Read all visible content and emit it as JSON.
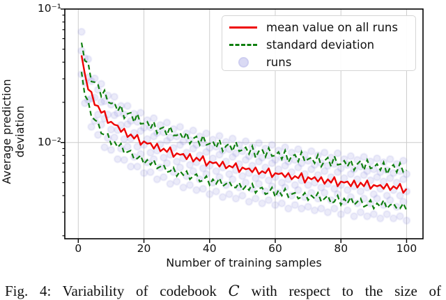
{
  "figure": {
    "caption": {
      "before": "Fig. 4: Variability of codebook ",
      "symbol": "C",
      "after": " with respect to the size of"
    }
  },
  "chart_data": {
    "type": "line+scatter",
    "title": "",
    "xlabel": "Number of training samples",
    "ylabel": "Average prediction deviation",
    "yscale": "log",
    "grid": true,
    "xlim": [
      -4.1,
      105
    ],
    "ylim": [
      0.0019,
      0.1
    ],
    "xticks": [
      0,
      20,
      40,
      60,
      80,
      100
    ],
    "yticks": [
      {
        "value": 0.1,
        "label": "10⁻¹"
      },
      {
        "value": 0.01,
        "label": "10⁻²"
      }
    ],
    "yticks_minor": [
      0.09,
      0.08,
      0.07,
      0.06,
      0.05,
      0.04,
      0.03,
      0.02,
      0.009,
      0.008,
      0.007,
      0.006,
      0.005,
      0.004,
      0.003,
      0.002
    ],
    "colors": {
      "mean": "#ee0000",
      "std": "#0f7f0f",
      "runs": "#7b7bd7",
      "grid": "#cccccc",
      "axes": "#000000"
    },
    "legend": {
      "position": "upper right",
      "items": [
        {
          "label": "mean value on all runs",
          "color": "#ee0000",
          "style": "solid"
        },
        {
          "label": "standard deviation",
          "color": "#0f7f0f",
          "style": "dashed"
        },
        {
          "label": "runs",
          "color": "#7b7bd7",
          "style": "scatter"
        }
      ]
    },
    "x": [
      1,
      2,
      3,
      4,
      5,
      6,
      7,
      8,
      9,
      10,
      11,
      12,
      13,
      14,
      15,
      16,
      17,
      18,
      19,
      20,
      21,
      22,
      23,
      24,
      25,
      26,
      27,
      28,
      29,
      30,
      31,
      32,
      33,
      34,
      35,
      36,
      37,
      38,
      39,
      40,
      41,
      42,
      43,
      44,
      45,
      46,
      47,
      48,
      49,
      50,
      51,
      52,
      53,
      54,
      55,
      56,
      57,
      58,
      59,
      60,
      61,
      62,
      63,
      64,
      65,
      66,
      67,
      68,
      69,
      70,
      71,
      72,
      73,
      74,
      75,
      76,
      77,
      78,
      79,
      80,
      81,
      82,
      83,
      84,
      85,
      86,
      87,
      88,
      89,
      90,
      91,
      92,
      93,
      94,
      95,
      96,
      97,
      98,
      99,
      100
    ],
    "series": [
      {
        "name": "mean value on all runs",
        "color": "#ee0000",
        "style": "solid",
        "values": [
          0.045,
          0.0328,
          0.025,
          0.0239,
          0.0191,
          0.0188,
          0.0167,
          0.0172,
          0.014,
          0.0143,
          0.0136,
          0.0134,
          0.012,
          0.0127,
          0.011,
          0.0115,
          0.0107,
          0.0114,
          0.0096,
          0.0102,
          0.0098,
          0.0099,
          0.009,
          0.0098,
          0.0086,
          0.009,
          0.0085,
          0.0092,
          0.0078,
          0.0083,
          0.0081,
          0.0082,
          0.0075,
          0.0082,
          0.0072,
          0.0077,
          0.0073,
          0.0079,
          0.0067,
          0.0072,
          0.007,
          0.0071,
          0.0066,
          0.0072,
          0.0064,
          0.0067,
          0.0065,
          0.007,
          0.006,
          0.0065,
          0.0063,
          0.0064,
          0.006,
          0.0065,
          0.0058,
          0.0061,
          0.0059,
          0.0064,
          0.0055,
          0.0059,
          0.0058,
          0.0059,
          0.0055,
          0.0059,
          0.0053,
          0.0056,
          0.0054,
          0.0059,
          0.005,
          0.0055,
          0.0053,
          0.0055,
          0.0051,
          0.0055,
          0.0049,
          0.0053,
          0.005,
          0.0055,
          0.0047,
          0.0051,
          0.005,
          0.0051,
          0.0047,
          0.0052,
          0.0046,
          0.005,
          0.0047,
          0.0052,
          0.0045,
          0.0048,
          0.0047,
          0.0048,
          0.0045,
          0.0049,
          0.0044,
          0.0047,
          0.0045,
          0.0049,
          0.0042,
          0.0045
        ]
      },
      {
        "name": "standard deviation (upper)",
        "color": "#0f7f0f",
        "style": "dashed",
        "values": [
          0.056,
          0.041,
          0.0395,
          0.0286,
          0.0283,
          0.0272,
          0.0221,
          0.0246,
          0.0201,
          0.0196,
          0.0199,
          0.0172,
          0.019,
          0.0152,
          0.0164,
          0.0167,
          0.0142,
          0.0164,
          0.0138,
          0.0139,
          0.0143,
          0.0127,
          0.0143,
          0.0117,
          0.0127,
          0.013,
          0.0113,
          0.0132,
          0.0113,
          0.0113,
          0.0118,
          0.0106,
          0.0119,
          0.0098,
          0.0107,
          0.0111,
          0.0096,
          0.0113,
          0.0096,
          0.0098,
          0.0102,
          0.0091,
          0.0105,
          0.0086,
          0.0094,
          0.0098,
          0.0086,
          0.0101,
          0.0086,
          0.0088,
          0.0092,
          0.0082,
          0.0094,
          0.0077,
          0.0086,
          0.0089,
          0.0078,
          0.0091,
          0.0079,
          0.008,
          0.0085,
          0.0075,
          0.0087,
          0.0071,
          0.0079,
          0.0081,
          0.0072,
          0.0085,
          0.0072,
          0.0075,
          0.0077,
          0.007,
          0.0081,
          0.0066,
          0.0073,
          0.0077,
          0.0066,
          0.0079,
          0.0068,
          0.0069,
          0.0073,
          0.0066,
          0.0074,
          0.0062,
          0.0069,
          0.0073,
          0.0062,
          0.0074,
          0.0064,
          0.0065,
          0.0069,
          0.0062,
          0.0071,
          0.0058,
          0.0065,
          0.0068,
          0.006,
          0.007,
          0.006,
          0.0062
        ]
      },
      {
        "name": "standard deviation (lower)",
        "color": "#0f7f0f",
        "style": "dashed",
        "values": [
          0.0338,
          0.0226,
          0.0205,
          0.0156,
          0.0148,
          0.0142,
          0.0117,
          0.0114,
          0.0116,
          0.0097,
          0.0102,
          0.0092,
          0.0098,
          0.0083,
          0.0085,
          0.0087,
          0.0075,
          0.0076,
          0.008,
          0.0069,
          0.0074,
          0.0068,
          0.0074,
          0.0064,
          0.0066,
          0.0068,
          0.006,
          0.0061,
          0.0065,
          0.0056,
          0.0061,
          0.0057,
          0.0061,
          0.0053,
          0.0056,
          0.0058,
          0.0051,
          0.0052,
          0.0056,
          0.0048,
          0.0053,
          0.0049,
          0.0054,
          0.0047,
          0.0049,
          0.0051,
          0.0046,
          0.0046,
          0.005,
          0.0044,
          0.0047,
          0.0044,
          0.0049,
          0.0042,
          0.0045,
          0.0046,
          0.0041,
          0.0042,
          0.0046,
          0.0039,
          0.0044,
          0.004,
          0.0045,
          0.0039,
          0.0041,
          0.0042,
          0.0038,
          0.0039,
          0.0042,
          0.0037,
          0.004,
          0.0038,
          0.0042,
          0.0036,
          0.0038,
          0.004,
          0.0035,
          0.0036,
          0.004,
          0.0034,
          0.0038,
          0.0035,
          0.0039,
          0.0034,
          0.0036,
          0.0038,
          0.0033,
          0.0034,
          0.0037,
          0.0032,
          0.0035,
          0.0033,
          0.0037,
          0.0032,
          0.0034,
          0.0035,
          0.0032,
          0.0032,
          0.0035,
          0.0031
        ]
      }
    ],
    "scatter_runs": {
      "name": "runs",
      "color": "#7b7bd7",
      "alpha": 0.15,
      "values_per_run": [
        [
          0.0675,
          0.028,
          0.0307,
          0.0214,
          0.0302,
          0.0162,
          0.0201,
          0.0151,
          0.0225,
          0.0125,
          0.016,
          0.0124,
          0.0188,
          0.0106,
          0.0137,
          0.0107,
          0.0164,
          0.0093,
          0.0122,
          0.0096,
          0.0147,
          0.0084,
          0.0111,
          0.0087,
          0.0135,
          0.0077,
          0.0103,
          0.0081,
          0.0126,
          0.0072,
          0.0096,
          0.0076,
          0.0117,
          0.0068,
          0.009,
          0.0071,
          0.0111,
          0.0064,
          0.0085,
          0.0067,
          0.0105,
          0.0061,
          0.0081,
          0.0065,
          0.0101,
          0.0058,
          0.0078,
          0.0062,
          0.0096,
          0.0056,
          0.0074,
          0.0059,
          0.0093,
          0.0054,
          0.0072,
          0.0057,
          0.009,
          0.0052,
          0.007,
          0.0055,
          0.0087,
          0.005,
          0.0067,
          0.0053,
          0.0084,
          0.0048,
          0.0065,
          0.0052,
          0.0081,
          0.0048,
          0.0063,
          0.005,
          0.008,
          0.0046,
          0.0061,
          0.0049,
          0.0077,
          0.0045,
          0.006,
          0.0048,
          0.0075,
          0.0044,
          0.0058,
          0.0047,
          0.0074,
          0.0043,
          0.0057,
          0.0046,
          0.0072,
          0.0041,
          0.0055,
          0.0045,
          0.0071,
          0.004,
          0.0054,
          0.0044,
          0.0069,
          0.004,
          0.0053,
          0.0043
        ],
        [
          0.0324,
          0.0429,
          0.0421,
          0.0288,
          0.0145,
          0.0248,
          0.0275,
          0.0204,
          0.0108,
          0.0192,
          0.022,
          0.0166,
          0.009,
          0.0162,
          0.0188,
          0.0145,
          0.0078,
          0.0143,
          0.0167,
          0.0129,
          0.0071,
          0.013,
          0.0152,
          0.0118,
          0.0065,
          0.0119,
          0.0141,
          0.0109,
          0.006,
          0.0111,
          0.0131,
          0.0102,
          0.0056,
          0.0104,
          0.0123,
          0.0096,
          0.0053,
          0.0099,
          0.0117,
          0.0091,
          0.005,
          0.0093,
          0.0112,
          0.0087,
          0.0048,
          0.0089,
          0.0107,
          0.0083,
          0.0046,
          0.0086,
          0.0102,
          0.0079,
          0.0045,
          0.0082,
          0.0099,
          0.0077,
          0.0043,
          0.008,
          0.0096,
          0.0074,
          0.0042,
          0.0077,
          0.0092,
          0.0072,
          0.004,
          0.0074,
          0.0089,
          0.007,
          0.0039,
          0.0073,
          0.0086,
          0.0068,
          0.0038,
          0.007,
          0.0084,
          0.0067,
          0.0037,
          0.0069,
          0.0083,
          0.0064,
          0.0036,
          0.0068,
          0.0079,
          0.0063,
          0.0035,
          0.0066,
          0.0078,
          0.0061,
          0.0035,
          0.0063,
          0.0076,
          0.006,
          0.0034,
          0.0062,
          0.0075,
          0.0059,
          0.0033,
          0.0061,
          0.0073,
          0.0058
        ],
        [
          0.0486,
          0.0197,
          0.0208,
          0.0131,
          0.0217,
          0.0114,
          0.0136,
          0.0092,
          0.0162,
          0.0088,
          0.0109,
          0.0075,
          0.0135,
          0.0074,
          0.0093,
          0.0066,
          0.0118,
          0.0066,
          0.0082,
          0.0059,
          0.0106,
          0.006,
          0.0075,
          0.0053,
          0.0097,
          0.0055,
          0.007,
          0.0049,
          0.0091,
          0.0051,
          0.0065,
          0.0046,
          0.0084,
          0.0048,
          0.0061,
          0.0044,
          0.008,
          0.0045,
          0.0058,
          0.0041,
          0.0076,
          0.0043,
          0.0055,
          0.0039,
          0.0072,
          0.0041,
          0.0053,
          0.0038,
          0.0069,
          0.004,
          0.005,
          0.0036,
          0.0067,
          0.0038,
          0.0049,
          0.0035,
          0.0065,
          0.0037,
          0.0047,
          0.0034,
          0.0063,
          0.0035,
          0.0046,
          0.0032,
          0.006,
          0.0034,
          0.0044,
          0.0032,
          0.0058,
          0.0033,
          0.0042,
          0.0031,
          0.0057,
          0.0032,
          0.0042,
          0.003,
          0.0055,
          0.0032,
          0.0041,
          0.0029,
          0.0054,
          0.0031,
          0.0039,
          0.0028,
          0.0053,
          0.003,
          0.0038,
          0.0028,
          0.0052,
          0.0029,
          0.0038,
          0.0027,
          0.0051,
          0.0029,
          0.0037,
          0.0027,
          0.005,
          0.0028,
          0.0036,
          0.0026
        ]
      ]
    }
  }
}
